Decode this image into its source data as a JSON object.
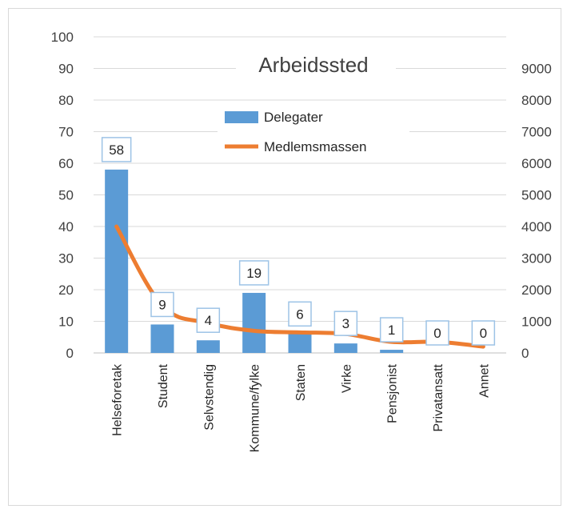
{
  "chart_data": {
    "type": "bar",
    "title": "Arbeidssted",
    "categories": [
      "Helseforetak",
      "Student",
      "Selvstendig",
      "Kommune/fylke",
      "Staten",
      "Virke",
      "Pensjonist",
      "Privatansatt",
      "Annet"
    ],
    "series": [
      {
        "name": "Delegater",
        "type": "bar",
        "axis": "left",
        "values": [
          58,
          9,
          4,
          19,
          6,
          3,
          1,
          0,
          0
        ],
        "data_labels": [
          "58",
          "9",
          "4",
          "19",
          "6",
          "3",
          "1",
          "0",
          "0"
        ]
      },
      {
        "name": "Medlemsmassen",
        "type": "line",
        "axis": "right",
        "values": [
          4000,
          1500,
          950,
          700,
          650,
          600,
          350,
          350,
          200
        ]
      }
    ],
    "y_left": {
      "ylim": [
        0,
        100
      ],
      "ticks": [
        "0",
        "10",
        "20",
        "30",
        "40",
        "50",
        "60",
        "70",
        "80",
        "90",
        "100"
      ]
    },
    "y_right": {
      "ylim": [
        0,
        10000
      ],
      "ticks": [
        "0",
        "1000",
        "2000",
        "3000",
        "4000",
        "5000",
        "6000",
        "7000",
        "8000",
        "9000"
      ]
    },
    "grid": true,
    "legend_position": "top-center",
    "colors": {
      "bar": "#5b9bd5",
      "line": "#ed7d31",
      "grid": "#d9d9d9",
      "label_border": "#9dc3e6"
    }
  }
}
